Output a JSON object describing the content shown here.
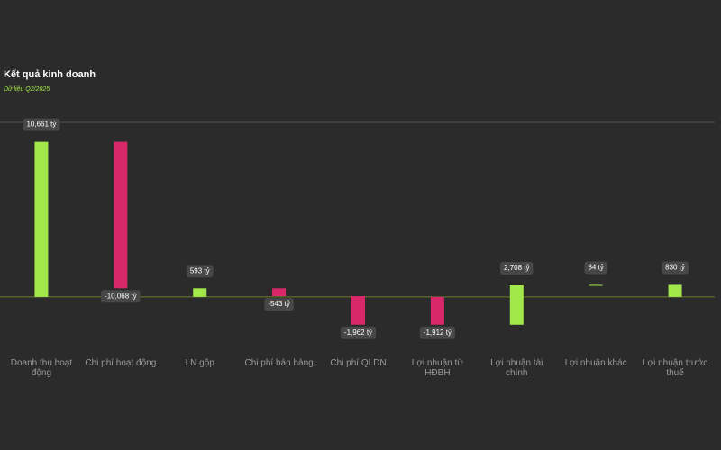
{
  "chart_data": {
    "type": "waterfall",
    "title": "Kết quả kinh doanh",
    "subtitle": "Dữ liệu Q2/2025",
    "categories": [
      "Doanh thu hoạt động",
      "Chi phí hoạt động",
      "LN gộp",
      "Chi phí bán hàng",
      "Chi phí QLDN",
      "Lợi nhuận từ HĐBH",
      "Lợi nhuận tài chính",
      "Lợi nhuận khác",
      "Lợi nhuận trước thuế"
    ],
    "values": [
      10661,
      -10068,
      593,
      -543,
      -1962,
      -1912,
      2708,
      34,
      830
    ],
    "value_labels": [
      "10,661 tỷ",
      "-10,068 tỷ",
      "593 tỷ",
      "-543 tỷ",
      "-1,962 tỷ",
      "-1,912 tỷ",
      "2,708 tỷ",
      "34 tỷ",
      "830 tỷ"
    ],
    "totals": [
      true,
      false,
      true,
      false,
      false,
      true,
      false,
      false,
      true
    ],
    "colors": {
      "positive": "#a3e84a",
      "negative": "#d9286a"
    },
    "ylim": [
      -4000,
      12000
    ],
    "yticks": [
      0,
      12000
    ],
    "grid": true
  }
}
